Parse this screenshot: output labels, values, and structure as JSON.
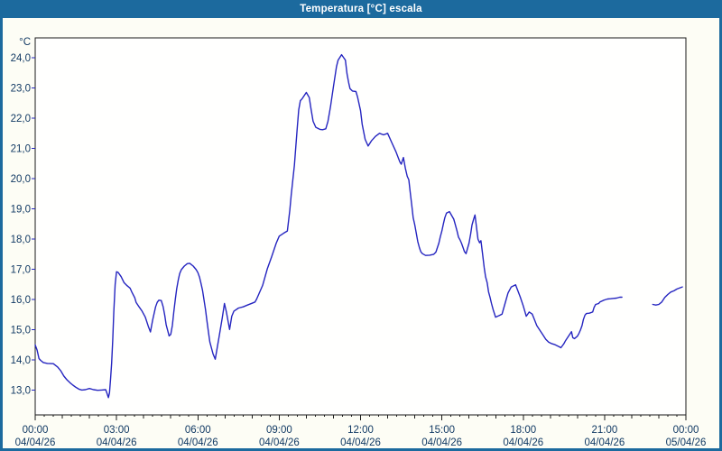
{
  "window": {
    "title": "Temperatura [°C] escala"
  },
  "chart_data": {
    "type": "line",
    "title": "Temperatura [°C] escala",
    "ylabel": "°C",
    "xlabel": "",
    "xlim_hours": [
      0,
      24
    ],
    "ylim": [
      13.0,
      24.0
    ],
    "grid": "dashed",
    "legend": "none",
    "line_color": "#2525c0",
    "y_ticks": [
      {
        "v": 24,
        "label": "24,0"
      },
      {
        "v": 23,
        "label": "23,0"
      },
      {
        "v": 22,
        "label": "22,0"
      },
      {
        "v": 21,
        "label": "21,0"
      },
      {
        "v": 20,
        "label": "20,0"
      },
      {
        "v": 19,
        "label": "19,0"
      },
      {
        "v": 18,
        "label": "18,0"
      },
      {
        "v": 17,
        "label": "17,0"
      },
      {
        "v": 16,
        "label": "16,0"
      },
      {
        "v": 15,
        "label": "15,0"
      },
      {
        "v": 14,
        "label": "14,0"
      },
      {
        "v": 13,
        "label": "13,0"
      }
    ],
    "x_ticks": [
      {
        "t": 0,
        "time": "00:00",
        "date": "04/04/26"
      },
      {
        "t": 3,
        "time": "03:00",
        "date": "04/04/26"
      },
      {
        "t": 6,
        "time": "06:00",
        "date": "04/04/26"
      },
      {
        "t": 9,
        "time": "09:00",
        "date": "04/04/26"
      },
      {
        "t": 12,
        "time": "12:00",
        "date": "04/04/26"
      },
      {
        "t": 15,
        "time": "15:00",
        "date": "04/04/26"
      },
      {
        "t": 18,
        "time": "18:00",
        "date": "04/04/26"
      },
      {
        "t": 21,
        "time": "21:00",
        "date": "04/04/26"
      },
      {
        "t": 24,
        "time": "00:00",
        "date": "05/04/26"
      }
    ],
    "series": [
      {
        "name": "Temperatura",
        "color": "#2525c0",
        "unit": "°C",
        "segments": [
          [
            [
              0.0,
              14.5
            ],
            [
              0.07,
              14.33
            ],
            [
              0.14,
              14.05
            ],
            [
              0.2,
              13.99
            ],
            [
              0.3,
              13.92
            ],
            [
              0.45,
              13.89
            ],
            [
              0.67,
              13.88
            ],
            [
              0.83,
              13.77
            ],
            [
              0.94,
              13.65
            ],
            [
              1.06,
              13.47
            ],
            [
              1.17,
              13.35
            ],
            [
              1.28,
              13.25
            ],
            [
              1.39,
              13.17
            ],
            [
              1.5,
              13.1
            ],
            [
              1.61,
              13.04
            ],
            [
              1.72,
              13.01
            ],
            [
              1.85,
              13.02
            ],
            [
              2.0,
              13.06
            ],
            [
              2.15,
              13.02
            ],
            [
              2.3,
              13.0
            ],
            [
              2.45,
              13.01
            ],
            [
              2.6,
              13.02
            ],
            [
              2.65,
              12.9
            ],
            [
              2.7,
              12.76
            ],
            [
              2.74,
              12.91
            ],
            [
              2.78,
              13.37
            ],
            [
              2.82,
              13.9
            ],
            [
              2.86,
              14.65
            ],
            [
              2.9,
              15.6
            ],
            [
              2.95,
              16.5
            ],
            [
              3.0,
              16.92
            ],
            [
              3.06,
              16.9
            ],
            [
              3.17,
              16.76
            ],
            [
              3.28,
              16.56
            ],
            [
              3.39,
              16.46
            ],
            [
              3.5,
              16.38
            ],
            [
              3.56,
              16.26
            ],
            [
              3.67,
              16.06
            ],
            [
              3.72,
              15.91
            ],
            [
              3.83,
              15.76
            ],
            [
              3.94,
              15.62
            ],
            [
              4.06,
              15.42
            ],
            [
              4.17,
              15.12
            ],
            [
              4.25,
              14.93
            ],
            [
              4.33,
              15.32
            ],
            [
              4.44,
              15.76
            ],
            [
              4.5,
              15.91
            ],
            [
              4.56,
              15.98
            ],
            [
              4.65,
              15.97
            ],
            [
              4.72,
              15.76
            ],
            [
              4.78,
              15.47
            ],
            [
              4.83,
              15.17
            ],
            [
              4.94,
              14.8
            ],
            [
              5.0,
              14.85
            ],
            [
              5.06,
              15.15
            ],
            [
              5.11,
              15.57
            ],
            [
              5.17,
              16.02
            ],
            [
              5.22,
              16.36
            ],
            [
              5.28,
              16.66
            ],
            [
              5.33,
              16.86
            ],
            [
              5.39,
              16.99
            ],
            [
              5.5,
              17.11
            ],
            [
              5.61,
              17.19
            ],
            [
              5.7,
              17.2
            ],
            [
              5.83,
              17.11
            ],
            [
              5.94,
              16.99
            ],
            [
              6.0,
              16.89
            ],
            [
              6.06,
              16.74
            ],
            [
              6.11,
              16.55
            ],
            [
              6.17,
              16.31
            ],
            [
              6.22,
              16.02
            ],
            [
              6.28,
              15.67
            ],
            [
              6.33,
              15.32
            ],
            [
              6.39,
              14.92
            ],
            [
              6.44,
              14.6
            ],
            [
              6.56,
              14.2
            ],
            [
              6.64,
              14.03
            ],
            [
              6.78,
              14.76
            ],
            [
              6.9,
              15.4
            ],
            [
              6.98,
              15.87
            ],
            [
              7.05,
              15.6
            ],
            [
              7.17,
              15.01
            ],
            [
              7.25,
              15.45
            ],
            [
              7.33,
              15.62
            ],
            [
              7.5,
              15.72
            ],
            [
              7.67,
              15.76
            ],
            [
              7.83,
              15.82
            ],
            [
              8.0,
              15.88
            ],
            [
              8.11,
              15.92
            ],
            [
              8.17,
              16.02
            ],
            [
              8.39,
              16.47
            ],
            [
              8.56,
              17.02
            ],
            [
              8.72,
              17.42
            ],
            [
              8.89,
              17.87
            ],
            [
              9.0,
              18.1
            ],
            [
              9.17,
              18.2
            ],
            [
              9.3,
              18.27
            ],
            [
              9.39,
              18.95
            ],
            [
              9.44,
              19.44
            ],
            [
              9.5,
              19.94
            ],
            [
              9.56,
              20.44
            ],
            [
              9.61,
              21.03
            ],
            [
              9.67,
              21.73
            ],
            [
              9.72,
              22.28
            ],
            [
              9.78,
              22.58
            ],
            [
              9.85,
              22.65
            ],
            [
              10.0,
              22.85
            ],
            [
              10.11,
              22.68
            ],
            [
              10.17,
              22.33
            ],
            [
              10.25,
              21.9
            ],
            [
              10.35,
              21.7
            ],
            [
              10.5,
              21.63
            ],
            [
              10.6,
              21.62
            ],
            [
              10.72,
              21.65
            ],
            [
              10.8,
              21.9
            ],
            [
              10.89,
              22.38
            ],
            [
              11.0,
              23.05
            ],
            [
              11.11,
              23.7
            ],
            [
              11.17,
              23.92
            ],
            [
              11.3,
              24.1
            ],
            [
              11.44,
              23.92
            ],
            [
              11.5,
              23.47
            ],
            [
              11.56,
              23.18
            ],
            [
              11.61,
              22.98
            ],
            [
              11.7,
              22.9
            ],
            [
              11.83,
              22.88
            ],
            [
              11.89,
              22.7
            ],
            [
              12.0,
              22.25
            ],
            [
              12.06,
              21.8
            ],
            [
              12.17,
              21.3
            ],
            [
              12.28,
              21.08
            ],
            [
              12.4,
              21.25
            ],
            [
              12.55,
              21.4
            ],
            [
              12.7,
              21.5
            ],
            [
              12.85,
              21.45
            ],
            [
              13.0,
              21.5
            ],
            [
              13.15,
              21.2
            ],
            [
              13.3,
              20.9
            ],
            [
              13.45,
              20.55
            ],
            [
              13.5,
              20.48
            ],
            [
              13.58,
              20.7
            ],
            [
              13.65,
              20.35
            ],
            [
              13.72,
              20.08
            ],
            [
              13.78,
              19.96
            ],
            [
              13.83,
              19.56
            ],
            [
              13.89,
              19.11
            ],
            [
              13.94,
              18.71
            ],
            [
              14.0,
              18.47
            ],
            [
              14.06,
              18.17
            ],
            [
              14.11,
              17.92
            ],
            [
              14.17,
              17.72
            ],
            [
              14.22,
              17.59
            ],
            [
              14.28,
              17.52
            ],
            [
              14.4,
              17.46
            ],
            [
              14.55,
              17.47
            ],
            [
              14.7,
              17.5
            ],
            [
              14.78,
              17.57
            ],
            [
              14.89,
              17.87
            ],
            [
              14.94,
              18.07
            ],
            [
              15.0,
              18.27
            ],
            [
              15.06,
              18.52
            ],
            [
              15.11,
              18.71
            ],
            [
              15.17,
              18.86
            ],
            [
              15.28,
              18.91
            ],
            [
              15.44,
              18.66
            ],
            [
              15.5,
              18.47
            ],
            [
              15.56,
              18.27
            ],
            [
              15.61,
              18.07
            ],
            [
              15.67,
              17.97
            ],
            [
              15.72,
              17.87
            ],
            [
              15.78,
              17.72
            ],
            [
              15.83,
              17.59
            ],
            [
              15.89,
              17.52
            ],
            [
              16.0,
              17.87
            ],
            [
              16.06,
              18.17
            ],
            [
              16.11,
              18.47
            ],
            [
              16.17,
              18.66
            ],
            [
              16.22,
              18.8
            ],
            [
              16.33,
              18.0
            ],
            [
              16.39,
              17.88
            ],
            [
              16.44,
              17.95
            ],
            [
              16.5,
              17.51
            ],
            [
              16.56,
              17.06
            ],
            [
              16.61,
              16.76
            ],
            [
              16.67,
              16.56
            ],
            [
              16.72,
              16.26
            ],
            [
              16.78,
              16.06
            ],
            [
              16.83,
              15.87
            ],
            [
              16.89,
              15.67
            ],
            [
              16.98,
              15.42
            ],
            [
              17.11,
              15.47
            ],
            [
              17.22,
              15.52
            ],
            [
              17.33,
              15.87
            ],
            [
              17.44,
              16.22
            ],
            [
              17.56,
              16.42
            ],
            [
              17.72,
              16.49
            ],
            [
              17.89,
              16.09
            ],
            [
              18.0,
              15.79
            ],
            [
              18.11,
              15.45
            ],
            [
              18.22,
              15.59
            ],
            [
              18.33,
              15.52
            ],
            [
              18.39,
              15.39
            ],
            [
              18.5,
              15.14
            ],
            [
              18.61,
              14.99
            ],
            [
              18.72,
              14.84
            ],
            [
              18.83,
              14.69
            ],
            [
              18.94,
              14.59
            ],
            [
              19.06,
              14.54
            ],
            [
              19.17,
              14.51
            ],
            [
              19.33,
              14.44
            ],
            [
              19.39,
              14.41
            ],
            [
              19.5,
              14.54
            ],
            [
              19.56,
              14.64
            ],
            [
              19.67,
              14.79
            ],
            [
              19.78,
              14.94
            ],
            [
              19.83,
              14.74
            ],
            [
              19.89,
              14.71
            ],
            [
              20.0,
              14.79
            ],
            [
              20.06,
              14.89
            ],
            [
              20.11,
              14.99
            ],
            [
              20.17,
              15.14
            ],
            [
              20.22,
              15.34
            ],
            [
              20.28,
              15.49
            ],
            [
              20.33,
              15.54
            ],
            [
              20.44,
              15.55
            ],
            [
              20.56,
              15.59
            ],
            [
              20.61,
              15.74
            ],
            [
              20.67,
              15.84
            ],
            [
              20.78,
              15.87
            ],
            [
              20.83,
              15.92
            ],
            [
              20.94,
              15.97
            ],
            [
              21.0,
              15.99
            ],
            [
              21.11,
              16.02
            ],
            [
              21.22,
              16.03
            ],
            [
              21.33,
              16.04
            ],
            [
              21.44,
              16.05
            ],
            [
              21.56,
              16.08
            ],
            [
              21.64,
              16.08
            ]
          ],
          [
            [
              22.78,
              15.84
            ],
            [
              22.89,
              15.82
            ],
            [
              23.0,
              15.84
            ],
            [
              23.11,
              15.92
            ],
            [
              23.22,
              16.07
            ],
            [
              23.33,
              16.17
            ],
            [
              23.44,
              16.25
            ],
            [
              23.56,
              16.29
            ],
            [
              23.67,
              16.35
            ],
            [
              23.78,
              16.39
            ],
            [
              23.87,
              16.42
            ]
          ]
        ]
      }
    ]
  }
}
